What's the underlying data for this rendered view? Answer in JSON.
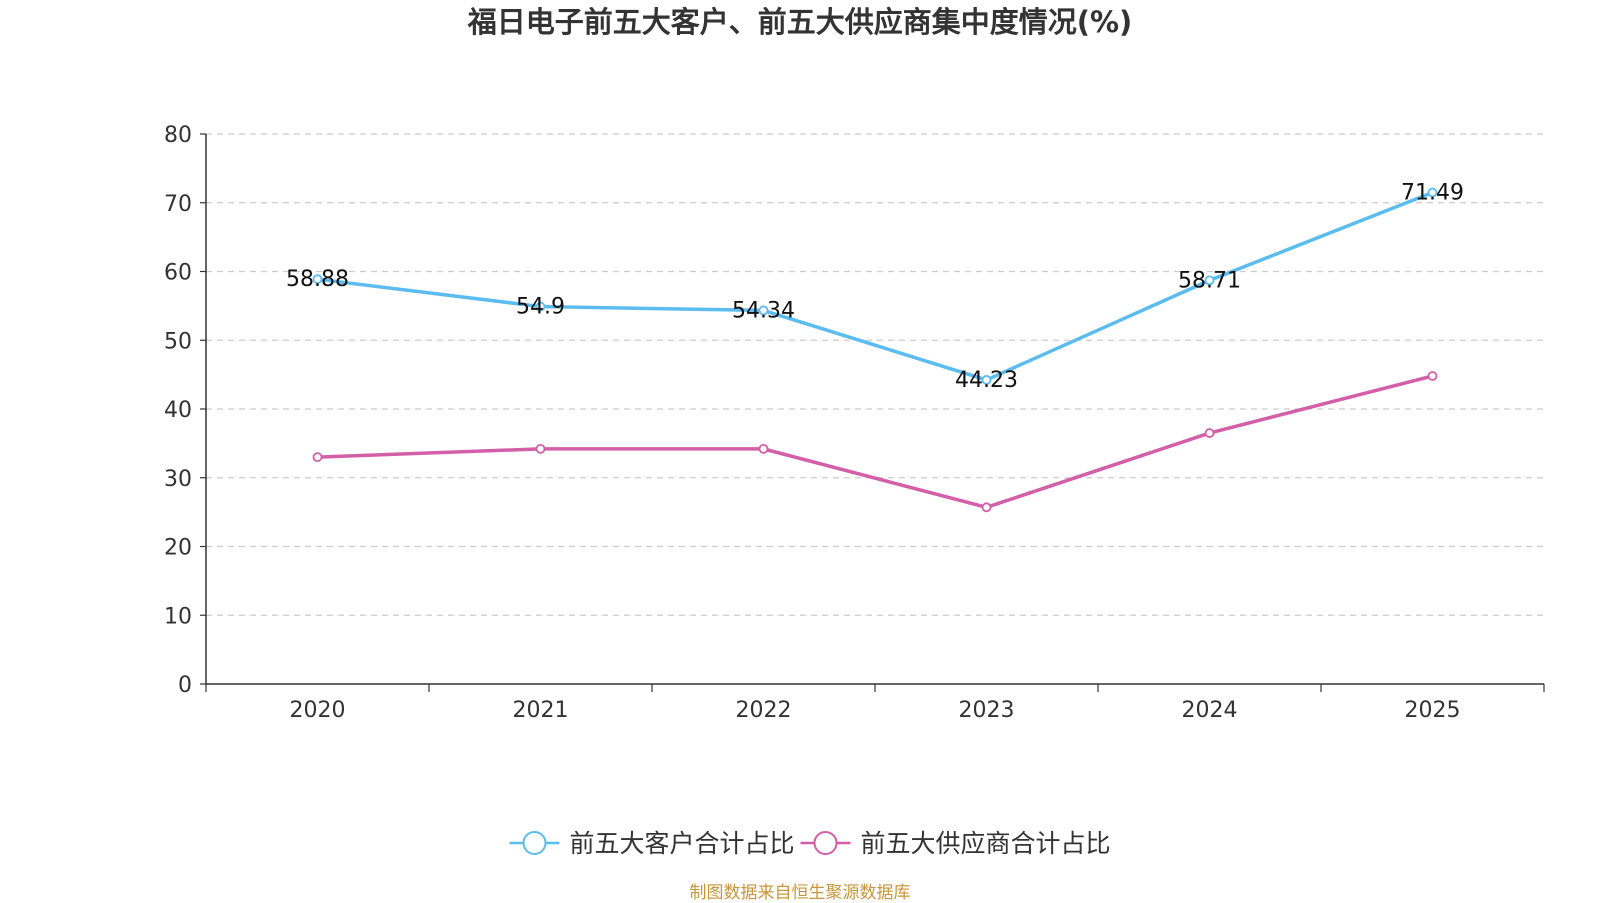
{
  "chart_data": {
    "type": "line",
    "title": "福日电子前五大客户、前五大供应商集中度情况(%)",
    "xlabel": "",
    "ylabel": "",
    "categories": [
      "2020",
      "2021",
      "2022",
      "2023",
      "2024",
      "2025"
    ],
    "ylim": [
      0,
      80
    ],
    "yticks": [
      0,
      10,
      20,
      30,
      40,
      50,
      60,
      70,
      80
    ],
    "grid": true,
    "legend_position": "bottom-center",
    "series": [
      {
        "name": "前五大客户合计占比",
        "color": "#5bbcf0",
        "values": [
          58.88,
          54.9,
          54.34,
          44.23,
          58.71,
          71.49
        ],
        "labels": [
          "58.88",
          "54.9",
          "54.34",
          "44.23",
          "58.71",
          "71.49"
        ],
        "show_labels": true
      },
      {
        "name": "前五大供应商合计占比",
        "color": "#d35fa8",
        "values": [
          33.0,
          34.2,
          34.2,
          25.7,
          36.5,
          44.8
        ],
        "show_labels": false
      }
    ]
  },
  "source_note": "制图数据来自恒生聚源数据库"
}
